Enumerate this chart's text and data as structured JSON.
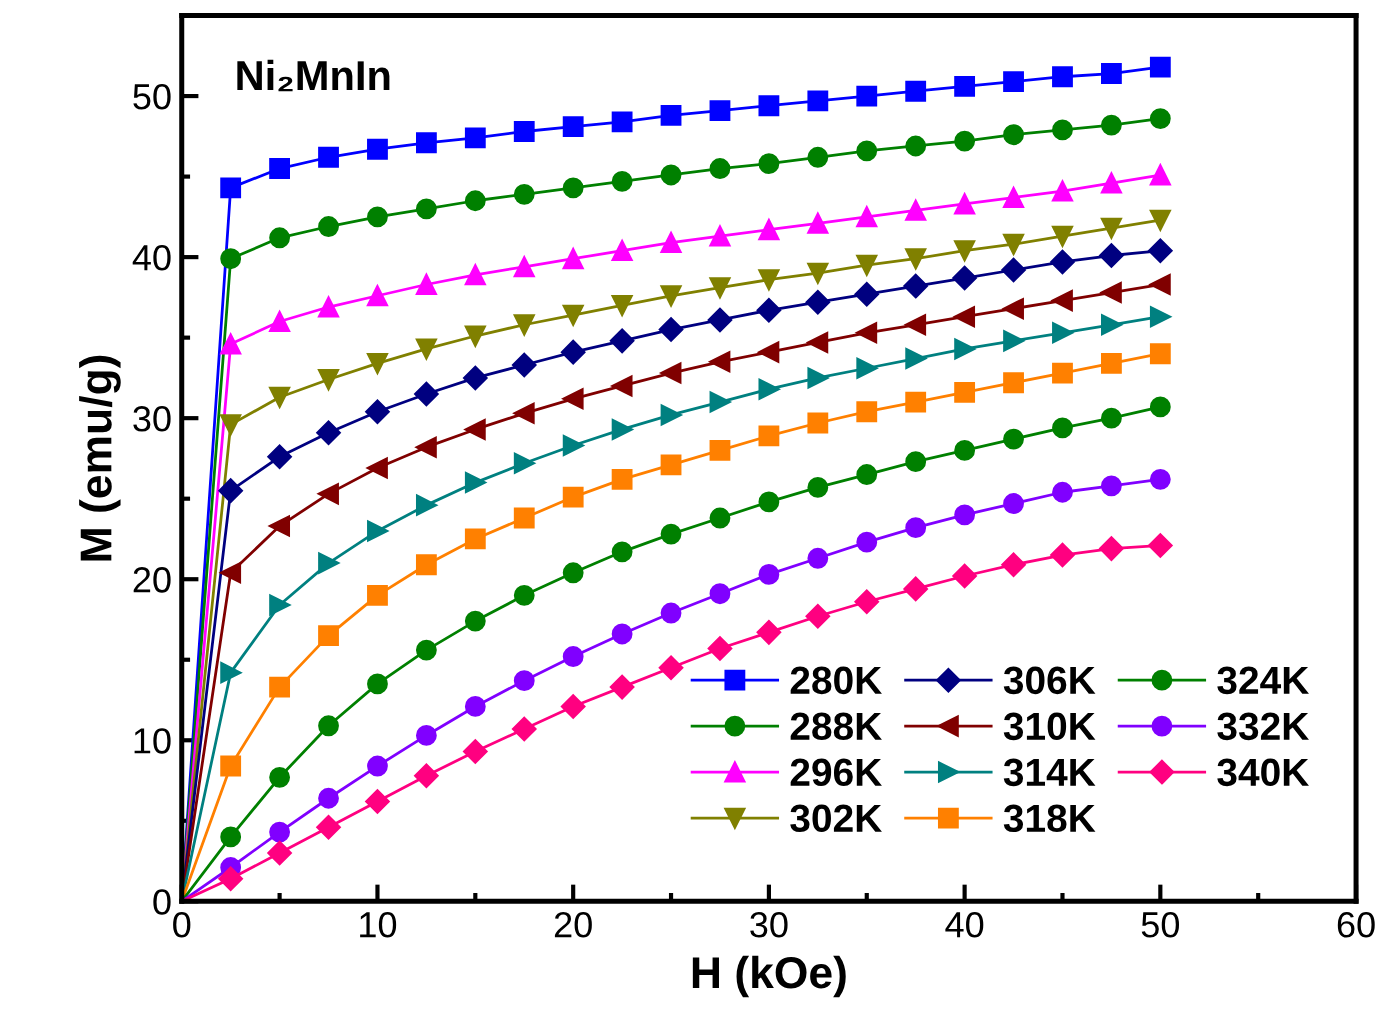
{
  "chart_data": {
    "type": "line",
    "title": "Ni₂MnIn",
    "xlabel": "H (kOe)",
    "ylabel": "M (emu/g)",
    "x": [
      0,
      2.5,
      5,
      7.5,
      10,
      12.5,
      15,
      17.5,
      20,
      22.5,
      25,
      27.5,
      30,
      32.5,
      35,
      37.5,
      40,
      42.5,
      45,
      47.5,
      50
    ],
    "xlim": [
      0,
      60
    ],
    "xticks": [
      0,
      10,
      20,
      30,
      40,
      50,
      60
    ],
    "ylim": [
      0,
      55
    ],
    "yticks": [
      0,
      10,
      20,
      30,
      40,
      50
    ],
    "grid": false,
    "legend": "bottom right",
    "line_style": "solid",
    "series": [
      {
        "name": "280K",
        "color": "#0000ff",
        "marker": "square",
        "values": [
          0,
          44.3,
          45.5,
          46.2,
          46.7,
          47.1,
          47.4,
          47.8,
          48.1,
          48.4,
          48.8,
          49.1,
          49.4,
          49.7,
          50.0,
          50.3,
          50.6,
          50.9,
          51.2,
          51.4,
          51.8
        ]
      },
      {
        "name": "288K",
        "color": "#008000",
        "marker": "circle",
        "values": [
          0,
          39.9,
          41.2,
          41.9,
          42.5,
          43.0,
          43.5,
          43.9,
          44.3,
          44.7,
          45.1,
          45.5,
          45.8,
          46.2,
          46.6,
          46.9,
          47.2,
          47.6,
          47.9,
          48.2,
          48.6
        ]
      },
      {
        "name": "296K",
        "color": "#ff00ff",
        "marker": "triangle",
        "values": [
          0,
          34.6,
          36.0,
          36.9,
          37.6,
          38.3,
          38.9,
          39.4,
          39.9,
          40.4,
          40.9,
          41.3,
          41.7,
          42.1,
          42.5,
          42.9,
          43.3,
          43.7,
          44.1,
          44.6,
          45.1
        ]
      },
      {
        "name": "302K",
        "color": "#808000",
        "marker": "triangle",
        "values": [
          0,
          29.6,
          31.3,
          32.4,
          33.4,
          34.3,
          35.1,
          35.8,
          36.4,
          37.0,
          37.6,
          38.1,
          38.6,
          39.0,
          39.5,
          39.9,
          40.4,
          40.8,
          41.3,
          41.8,
          42.3
        ]
      },
      {
        "name": "306K",
        "color": "#000080",
        "marker": "diamond",
        "values": [
          0,
          25.5,
          27.6,
          29.1,
          30.4,
          31.5,
          32.5,
          33.3,
          34.1,
          34.8,
          35.5,
          36.1,
          36.7,
          37.2,
          37.7,
          38.2,
          38.7,
          39.2,
          39.7,
          40.1,
          40.4
        ]
      },
      {
        "name": "310K",
        "color": "#800000",
        "marker": "triangle",
        "values": [
          0,
          20.4,
          23.3,
          25.3,
          26.9,
          28.2,
          29.3,
          30.3,
          31.2,
          32.0,
          32.8,
          33.5,
          34.1,
          34.7,
          35.3,
          35.8,
          36.3,
          36.8,
          37.3,
          37.8,
          38.3
        ]
      },
      {
        "name": "314K",
        "color": "#008080",
        "marker": "triangle",
        "values": [
          0,
          14.2,
          18.4,
          21.0,
          23.0,
          24.6,
          26.0,
          27.2,
          28.3,
          29.3,
          30.2,
          31.0,
          31.8,
          32.5,
          33.1,
          33.7,
          34.3,
          34.8,
          35.3,
          35.8,
          36.3
        ]
      },
      {
        "name": "318K",
        "color": "#ff8000",
        "marker": "square",
        "values": [
          0,
          8.4,
          13.3,
          16.5,
          19.0,
          20.9,
          22.5,
          23.8,
          25.1,
          26.2,
          27.1,
          28.0,
          28.9,
          29.7,
          30.4,
          31.0,
          31.6,
          32.2,
          32.8,
          33.4,
          34.0
        ]
      },
      {
        "name": "324K",
        "color": "#008000",
        "marker": "circle",
        "values": [
          0,
          4.0,
          7.7,
          10.9,
          13.5,
          15.6,
          17.4,
          19.0,
          20.4,
          21.7,
          22.8,
          23.8,
          24.8,
          25.7,
          26.5,
          27.3,
          28.0,
          28.7,
          29.4,
          30.0,
          30.7
        ]
      },
      {
        "name": "332K",
        "color": "#8000ff",
        "marker": "circle",
        "values": [
          0,
          2.1,
          4.3,
          6.4,
          8.4,
          10.3,
          12.1,
          13.7,
          15.2,
          16.6,
          17.9,
          19.1,
          20.3,
          21.3,
          22.3,
          23.2,
          24.0,
          24.7,
          25.4,
          25.8,
          26.2
        ]
      },
      {
        "name": "340K",
        "color": "#ff0080",
        "marker": "diamond",
        "values": [
          0,
          1.4,
          3.0,
          4.6,
          6.2,
          7.8,
          9.3,
          10.7,
          12.1,
          13.3,
          14.5,
          15.7,
          16.7,
          17.7,
          18.6,
          19.4,
          20.2,
          20.9,
          21.5,
          21.9,
          22.1
        ]
      }
    ]
  }
}
